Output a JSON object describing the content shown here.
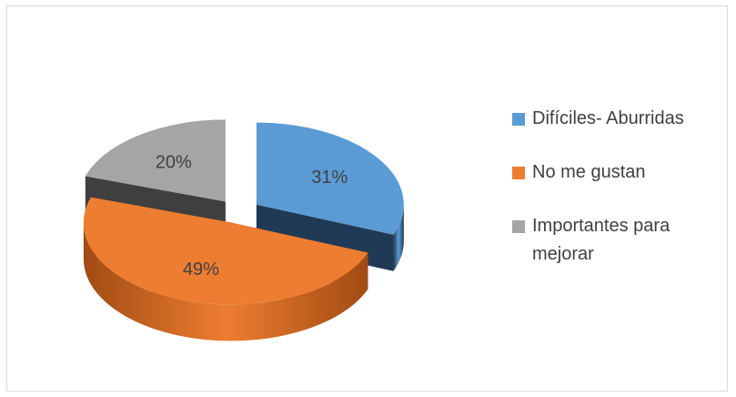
{
  "chart_data": {
    "type": "pie",
    "style": "3d-exploded",
    "labels": [
      "Difíciles- Aburridas",
      "No  me gustan",
      "Importantes para mejorar"
    ],
    "values": [
      31,
      49,
      20
    ],
    "data_labels": [
      "31%",
      "49%",
      "20%"
    ],
    "colors": [
      "#5b9bd5",
      "#ed7d31",
      "#a5a5a5"
    ],
    "side_colors": [
      "#203a56",
      "#a14b13",
      "#3f3f3f"
    ],
    "legend_position": "right"
  }
}
